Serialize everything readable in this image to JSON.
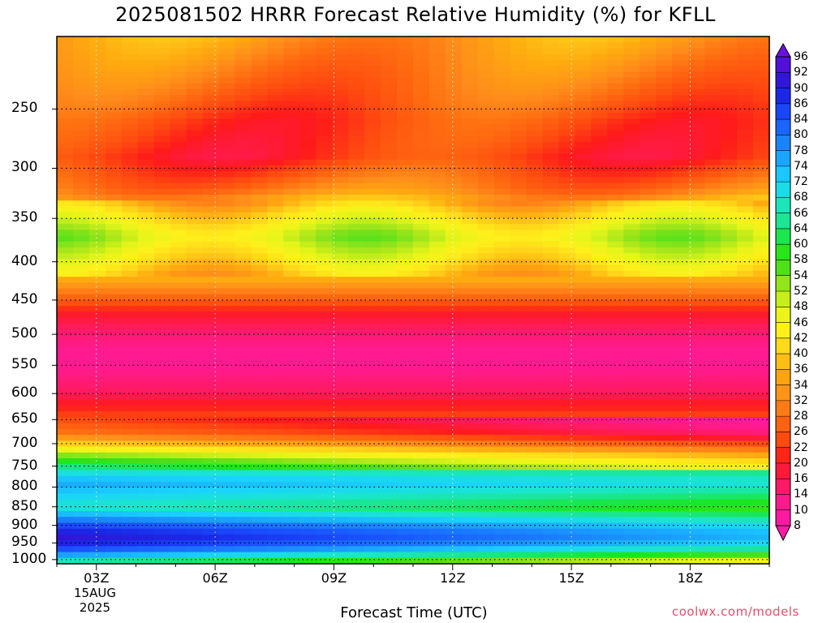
{
  "title": "2025081502 HRRR Forecast Relative Humidity (%) for KFLL",
  "credit": "coolwx.com/models",
  "chart_data": {
    "type": "heatmap",
    "title": "2025081502 HRRR Forecast Relative Humidity (%) for KFLL",
    "xlabel": "Forecast Time (UTC)",
    "ylabel": "",
    "x_ticks": [
      "03Z",
      "06Z",
      "09Z",
      "12Z",
      "15Z",
      "18Z"
    ],
    "x_date": [
      "15AUG",
      "2025"
    ],
    "x_hours": [
      2,
      3,
      4,
      5,
      6,
      7,
      8,
      9,
      10,
      11,
      12,
      13,
      14,
      15,
      16,
      17,
      18,
      19,
      20
    ],
    "y_ticks": [
      "250",
      "300",
      "350",
      "400",
      "450",
      "500",
      "550",
      "600",
      "650",
      "700",
      "750",
      "800",
      "850",
      "900",
      "950",
      "1000"
    ],
    "y_axis": "pressure (hPa), reversed, log",
    "colorbar_levels": [
      96,
      92,
      90,
      86,
      84,
      80,
      78,
      74,
      72,
      68,
      66,
      64,
      60,
      58,
      54,
      52,
      48,
      46,
      42,
      40,
      36,
      34,
      32,
      28,
      26,
      22,
      20,
      16,
      14,
      10,
      8
    ],
    "profile": [
      {
        "p": 200,
        "rh": 34
      },
      {
        "p": 230,
        "rh": 29
      },
      {
        "p": 260,
        "rh": 24
      },
      {
        "p": 290,
        "rh": 22
      },
      {
        "p": 320,
        "rh": 30
      },
      {
        "p": 345,
        "rh": 42
      },
      {
        "p": 370,
        "rh": 50
      },
      {
        "p": 395,
        "rh": 44
      },
      {
        "p": 420,
        "rh": 37
      },
      {
        "p": 445,
        "rh": 28
      },
      {
        "p": 470,
        "rh": 19
      },
      {
        "p": 500,
        "rh": 14
      },
      {
        "p": 530,
        "rh": 11
      },
      {
        "p": 560,
        "rh": 12
      },
      {
        "p": 600,
        "rh": 16
      },
      {
        "p": 640,
        "rh": 23
      },
      {
        "p": 680,
        "rh": 30
      },
      {
        "p": 700,
        "rh": 40
      },
      {
        "p": 730,
        "rh": 56
      },
      {
        "p": 760,
        "rh": 68
      },
      {
        "p": 790,
        "rh": 76
      },
      {
        "p": 820,
        "rh": 72
      },
      {
        "p": 850,
        "rh": 68
      },
      {
        "p": 880,
        "rh": 78
      },
      {
        "p": 910,
        "rh": 88
      },
      {
        "p": 940,
        "rh": 92
      },
      {
        "p": 970,
        "rh": 84
      },
      {
        "p": 1000,
        "rh": 70
      },
      {
        "p": 1013,
        "rh": 62
      }
    ]
  }
}
